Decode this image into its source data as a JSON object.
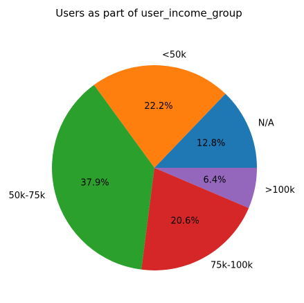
{
  "chart_data": {
    "type": "pie",
    "title": "Users as part of user_income_group",
    "categories": [
      "N/A",
      "<50k",
      "50k-75k",
      "75k-100k",
      ">100k"
    ],
    "values": [
      12.8,
      22.2,
      37.9,
      20.6,
      6.4
    ],
    "value_labels": [
      "12.8%",
      "22.2%",
      "37.9%",
      "20.6%",
      "6.4%"
    ],
    "colors": [
      "#1f77b4",
      "#ff7f0e",
      "#2ca02c",
      "#d62728",
      "#9467bd"
    ],
    "start_angle_deg": 0,
    "direction": "counterclockwise",
    "legend": "none"
  }
}
